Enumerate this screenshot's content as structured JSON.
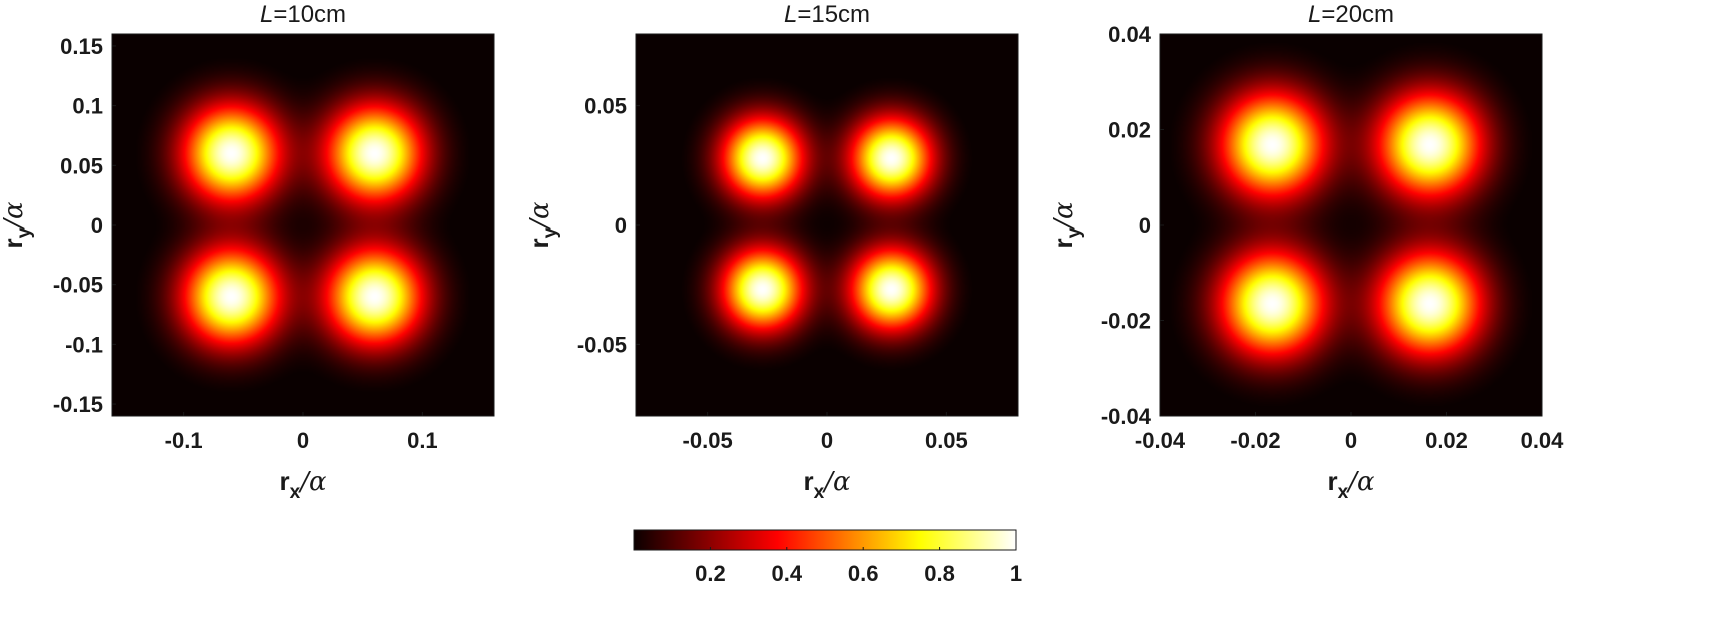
{
  "chart_data": {
    "type": "heatmap",
    "colormap": "hot",
    "panels": [
      {
        "title_var": "L",
        "title_value": "=10cm",
        "xlabel": "r",
        "xlabel_sub": "x",
        "xlabel_tail": "/α",
        "ylabel": "r",
        "ylabel_sub": "y",
        "ylabel_tail": "/α",
        "xlim": [
          -0.16,
          0.16
        ],
        "ylim": [
          -0.16,
          0.16
        ],
        "xticks": [
          -0.1,
          0,
          0.1
        ],
        "xtick_labels": [
          "-0.1",
          "0",
          "0.1"
        ],
        "yticks": [
          0.15,
          0.1,
          0.05,
          0,
          -0.05,
          -0.1,
          -0.15
        ],
        "ytick_labels": [
          "0.15",
          "0.1",
          "0.05",
          "0",
          "-0.05",
          "-0.1",
          "-0.15"
        ],
        "peaks": [
          {
            "x": -0.06,
            "y": 0.06,
            "value": 1
          },
          {
            "x": 0.06,
            "y": 0.06,
            "value": 1
          },
          {
            "x": -0.06,
            "y": -0.06,
            "value": 1
          },
          {
            "x": 0.06,
            "y": -0.06,
            "value": 1
          }
        ],
        "spot_width": 0.028
      },
      {
        "title_var": "L",
        "title_value": "=15cm",
        "xlabel": "r",
        "xlabel_sub": "x",
        "xlabel_tail": "/α",
        "ylabel": "r",
        "ylabel_sub": "y",
        "ylabel_tail": "/α",
        "xlim": [
          -0.08,
          0.08
        ],
        "ylim": [
          -0.08,
          0.08
        ],
        "xticks": [
          -0.05,
          0,
          0.05
        ],
        "xtick_labels": [
          "-0.05",
          "0",
          "0.05"
        ],
        "yticks": [
          0.05,
          0,
          -0.05
        ],
        "ytick_labels": [
          "0.05",
          "0",
          "-0.05"
        ],
        "peaks": [
          {
            "x": -0.027,
            "y": 0.028,
            "value": 1
          },
          {
            "x": 0.027,
            "y": 0.028,
            "value": 1
          },
          {
            "x": -0.027,
            "y": -0.027,
            "value": 1
          },
          {
            "x": 0.027,
            "y": -0.027,
            "value": 1
          }
        ],
        "spot_width": 0.0118
      },
      {
        "title_var": "L",
        "title_value": "=20cm",
        "xlabel": "r",
        "xlabel_sub": "x",
        "xlabel_tail": "/α",
        "ylabel": "r",
        "ylabel_sub": "y",
        "ylabel_tail": "/α",
        "xlim": [
          -0.04,
          0.04
        ],
        "ylim": [
          -0.04,
          0.04
        ],
        "xticks": [
          -0.04,
          -0.02,
          0,
          0.02,
          0.04
        ],
        "xtick_labels": [
          "-0.04",
          "-0.02",
          "0",
          "0.02",
          "0.04"
        ],
        "yticks": [
          0.04,
          0.02,
          0,
          -0.02,
          -0.04
        ],
        "ytick_labels": [
          "0.04",
          "0.02",
          "0",
          "-0.02",
          "-0.04"
        ],
        "peaks": [
          {
            "x": -0.0165,
            "y": 0.0168,
            "value": 1
          },
          {
            "x": 0.0165,
            "y": 0.0168,
            "value": 1
          },
          {
            "x": -0.0165,
            "y": -0.0165,
            "value": 1
          },
          {
            "x": 0.0165,
            "y": -0.0165,
            "value": 1
          }
        ],
        "spot_width": 0.0075
      }
    ],
    "colorbar": {
      "range": [
        0,
        1
      ],
      "ticks": [
        0.2,
        0.4,
        0.6,
        0.8,
        1
      ],
      "tick_labels": [
        "0.2",
        "0.4",
        "0.6",
        "0.8",
        "1"
      ]
    },
    "grid": false
  }
}
